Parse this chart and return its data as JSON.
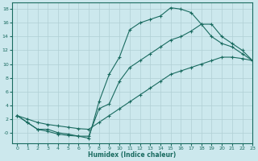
{
  "xlabel": "Humidex (Indice chaleur)",
  "background_color": "#cce8ed",
  "grid_color": "#b0cfd4",
  "line_color": "#1a6b60",
  "line1_y": [
    2.5,
    1.5,
    0.5,
    0.5,
    0.0,
    -0.2,
    -0.5,
    -0.8,
    4.5,
    8.5,
    11.0,
    15.0,
    16.0,
    16.5,
    17.0,
    18.2,
    18.0,
    17.5,
    15.8,
    14.0,
    13.0,
    12.5,
    11.5,
    10.5
  ],
  "line2_y": [
    2.5,
    1.5,
    0.5,
    0.2,
    -0.2,
    -0.4,
    -0.5,
    -0.5,
    3.5,
    4.2,
    7.5,
    9.5,
    10.5,
    11.5,
    12.5,
    13.5,
    14.0,
    14.8,
    15.8,
    15.8,
    14.0,
    13.0,
    12.0,
    10.5
  ],
  "line3_y": [
    2.5,
    2.0,
    1.5,
    1.2,
    1.0,
    0.8,
    0.6,
    0.5,
    1.5,
    2.5,
    3.5,
    4.5,
    5.5,
    6.5,
    7.5,
    8.5,
    9.0,
    9.5,
    10.0,
    10.5,
    11.0,
    11.0,
    10.8,
    10.5
  ],
  "ylim": [
    -1.5,
    19
  ],
  "xlim": [
    -0.5,
    23
  ],
  "yticks": [
    0,
    2,
    4,
    6,
    8,
    10,
    12,
    14,
    16,
    18
  ],
  "xticks": [
    0,
    1,
    2,
    3,
    4,
    5,
    6,
    7,
    8,
    9,
    10,
    11,
    12,
    13,
    14,
    15,
    16,
    17,
    18,
    19,
    20,
    21,
    22,
    23
  ]
}
